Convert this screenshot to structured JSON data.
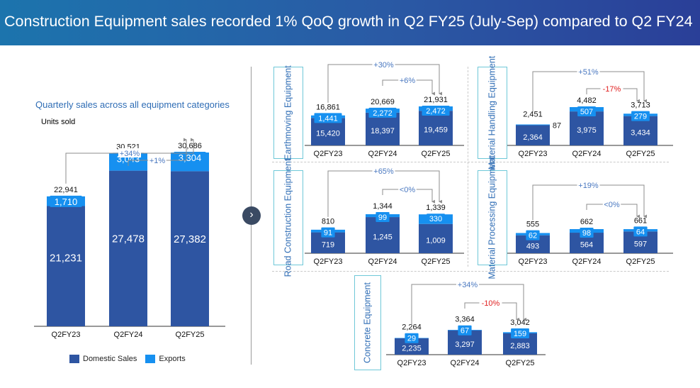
{
  "header": {
    "title": "Construction Equipment sales recorded 1% QoQ growth in Q2 FY25 (July-Sep) compared to Q2 FY24"
  },
  "left": {
    "subtitle": "Quarterly sales across all equipment categories",
    "units": "Units sold"
  },
  "legend": {
    "domestic": "Domestic Sales",
    "exports": "Exports"
  },
  "colors": {
    "domestic": "#2e55a2",
    "exports": "#1690f0",
    "positive": "#4a78c0",
    "negative": "#e02020",
    "arrow": "#8c8c8c"
  },
  "categories": {
    "earthmoving": "Earthmoving Equipment",
    "material_handling": "Material Handling Equipment",
    "road_construction": "Road Construction Equipment",
    "material_processing": "Material Processing Equipment",
    "concrete": "Concrete Equipment"
  },
  "chart_data": [
    {
      "id": "overall",
      "type": "bar",
      "stacked": true,
      "categories": [
        "Q2FY23",
        "Q2FY24",
        "Q2FY25"
      ],
      "series": [
        {
          "name": "Domestic Sales",
          "values": [
            21231,
            27478,
            27382
          ]
        },
        {
          "name": "Exports",
          "values": [
            1710,
            3043,
            3304
          ]
        }
      ],
      "domestic_labels": [
        "21,231",
        "27,478",
        "27,382"
      ],
      "export_labels": [
        "1,710",
        "3,043",
        "3,304"
      ],
      "total_labels": [
        "22,941",
        "30,521",
        "30,686"
      ],
      "annotations": [
        {
          "from": 0,
          "to": 2,
          "label": "+34%",
          "neg": false
        },
        {
          "from": 1,
          "to": 2,
          "label": "+1%",
          "neg": false
        }
      ]
    },
    {
      "id": "earthmoving",
      "type": "bar",
      "stacked": true,
      "title": "Earthmoving Equipment",
      "categories": [
        "Q2FY23",
        "Q2FY24",
        "Q2FY25"
      ],
      "series": [
        {
          "name": "Domestic Sales",
          "values": [
            15420,
            18397,
            19459
          ]
        },
        {
          "name": "Exports",
          "values": [
            1441,
            2272,
            2472
          ]
        }
      ],
      "domestic_labels": [
        "15,420",
        "18,397",
        "19,459"
      ],
      "export_labels": [
        "1,441",
        "2,272",
        "2,472"
      ],
      "total_labels": [
        "16,861",
        "20,669",
        "21,931"
      ],
      "annotations": [
        {
          "from": 0,
          "to": 2,
          "label": "+30%",
          "neg": false
        },
        {
          "from": 1,
          "to": 2,
          "label": "+6%",
          "neg": false
        }
      ]
    },
    {
      "id": "material_handling",
      "type": "bar",
      "stacked": true,
      "title": "Material Handling Equipment",
      "categories": [
        "Q2FY23",
        "Q2FY24",
        "Q2FY25"
      ],
      "series": [
        {
          "name": "Domestic Sales",
          "values": [
            2364,
            3975,
            3434
          ]
        },
        {
          "name": "Exports",
          "values": [
            87,
            507,
            279
          ]
        }
      ],
      "domestic_labels": [
        "2,364",
        "3,975",
        "3,434"
      ],
      "export_labels": [
        "87",
        "507",
        "279"
      ],
      "total_labels": [
        "2,451",
        "4,482",
        "3,713"
      ],
      "annotations": [
        {
          "from": 0,
          "to": 2,
          "label": "+51%",
          "neg": false
        },
        {
          "from": 1,
          "to": 2,
          "label": "-17%",
          "neg": true
        }
      ]
    },
    {
      "id": "road_construction",
      "type": "bar",
      "stacked": true,
      "title": "Road Construction Equipment",
      "categories": [
        "Q2FY23",
        "Q2FY24",
        "Q2FY25"
      ],
      "series": [
        {
          "name": "Domestic Sales",
          "values": [
            719,
            1245,
            1009
          ]
        },
        {
          "name": "Exports",
          "values": [
            91,
            99,
            330
          ]
        }
      ],
      "domestic_labels": [
        "719",
        "1,245",
        "1,009"
      ],
      "export_labels": [
        "91",
        "99",
        "330"
      ],
      "total_labels": [
        "810",
        "1,344",
        "1,339"
      ],
      "annotations": [
        {
          "from": 0,
          "to": 2,
          "label": "+65%",
          "neg": false
        },
        {
          "from": 1,
          "to": 2,
          "label": "<0%",
          "neg": false
        }
      ]
    },
    {
      "id": "material_processing",
      "type": "bar",
      "stacked": true,
      "title": "Material Processing Equipment",
      "categories": [
        "Q2FY23",
        "Q2FY24",
        "Q2FY25"
      ],
      "series": [
        {
          "name": "Domestic Sales",
          "values": [
            493,
            564,
            597
          ]
        },
        {
          "name": "Exports",
          "values": [
            62,
            98,
            64
          ]
        }
      ],
      "domestic_labels": [
        "493",
        "564",
        "597"
      ],
      "export_labels": [
        "62",
        "98",
        "64"
      ],
      "total_labels": [
        "555",
        "662",
        "661"
      ],
      "annotations": [
        {
          "from": 0,
          "to": 2,
          "label": "+19%",
          "neg": false
        },
        {
          "from": 1,
          "to": 2,
          "label": "<0%",
          "neg": false
        }
      ]
    },
    {
      "id": "concrete",
      "type": "bar",
      "stacked": true,
      "title": "Concrete Equipment",
      "categories": [
        "Q2FY23",
        "Q2FY24",
        "Q2FY25"
      ],
      "series": [
        {
          "name": "Domestic Sales",
          "values": [
            2235,
            3297,
            2883
          ]
        },
        {
          "name": "Exports",
          "values": [
            29,
            67,
            159
          ]
        }
      ],
      "domestic_labels": [
        "2,235",
        "3,297",
        "2,883"
      ],
      "export_labels": [
        "29",
        "67",
        "159"
      ],
      "total_labels": [
        "2,264",
        "3,364",
        "3,042"
      ],
      "annotations": [
        {
          "from": 0,
          "to": 2,
          "label": "+34%",
          "neg": false
        },
        {
          "from": 1,
          "to": 2,
          "label": "-10%",
          "neg": true
        }
      ]
    }
  ]
}
